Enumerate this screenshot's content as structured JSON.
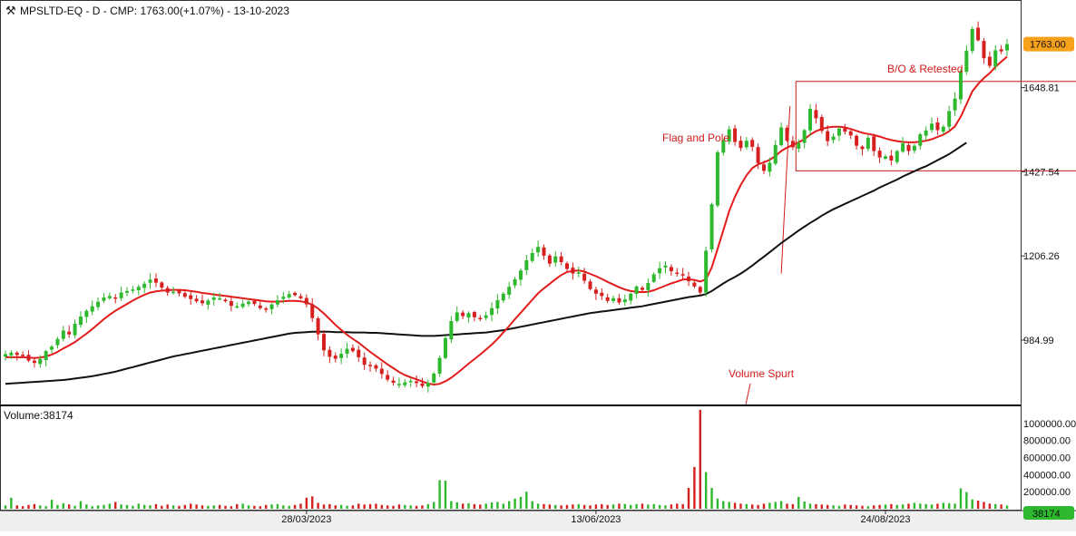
{
  "header": {
    "title": "MPSLTD-EQ - D - CMP: 1763.00(+1.07%) - 13-10-2023"
  },
  "chart_data": [
    {
      "type": "candlestick",
      "ylim": [
        830,
        1860
      ],
      "y_ticks": [
        "1648.81",
        "1427.54",
        "1206.26",
        "984.99"
      ],
      "y_tick_values": [
        1648.81,
        1427.54,
        1206.26,
        984.99
      ],
      "x_tick_labels": [
        "28/03/2023",
        "13/06/2023",
        "24/08/2023"
      ],
      "x_tick_index": [
        52,
        102,
        152
      ],
      "last_price_label": "1763.00",
      "last_price": 1763,
      "annotations": {
        "flag_and_pole": "Flag and Pole",
        "bo_retested": "B/O & Retested",
        "volume_spurt": "Volume Spurt"
      },
      "rectangle": {
        "from_index": 137,
        "to_index": 185,
        "y_low": 1430,
        "y_high": 1665
      },
      "ma_fast_color": "#e21b1b",
      "ma_slow_color": "#111111",
      "up_color": "#2db82d",
      "down_color": "#d62020",
      "series": [
        {
          "name": "close",
          "values": [
            948,
            952,
            946,
            944,
            931,
            925,
            935,
            956,
            968,
            988,
            1010,
            1000,
            1028,
            1047,
            1062,
            1074,
            1086,
            1097,
            1101,
            1094,
            1110,
            1114,
            1118,
            1125,
            1133,
            1144,
            1136,
            1123,
            1110,
            1112,
            1108,
            1099,
            1093,
            1087,
            1082,
            1089,
            1097,
            1095,
            1087,
            1075,
            1074,
            1081,
            1086,
            1080,
            1069,
            1067,
            1079,
            1090,
            1099,
            1106,
            1103,
            1095,
            1079,
            1043,
            1000,
            958,
            941,
            936,
            949,
            962,
            956,
            940,
            920,
            917,
            910,
            896,
            881,
            873,
            870,
            874,
            878,
            872,
            864,
            873,
            897,
            938,
            990,
            1035,
            1058,
            1048,
            1056,
            1045,
            1041,
            1050,
            1069,
            1090,
            1107,
            1125,
            1145,
            1168,
            1195,
            1214,
            1230,
            1207,
            1186,
            1205,
            1190,
            1172,
            1160,
            1163,
            1141,
            1119,
            1107,
            1101,
            1088,
            1095,
            1084,
            1092,
            1107,
            1126,
            1117,
            1135,
            1158,
            1174,
            1181,
            1166,
            1160,
            1155,
            1140,
            1126,
            1110,
            1220,
            1342,
            1479,
            1510,
            1539,
            1506,
            1490,
            1509,
            1493,
            1450,
            1430,
            1451,
            1498,
            1544,
            1509,
            1492,
            1503,
            1537,
            1593,
            1568,
            1535,
            1508,
            1520,
            1541,
            1533,
            1523,
            1496,
            1487,
            1517,
            1482,
            1465,
            1468,
            1457,
            1482,
            1502,
            1482,
            1496,
            1526,
            1536,
            1554,
            1537,
            1546,
            1587,
            1620,
            1692,
            1746,
            1803,
            1773,
            1726,
            1706,
            1747,
            1744,
            1763
          ]
        },
        {
          "name": "ma_fast",
          "values": [
            940,
            940,
            940,
            940,
            939,
            938,
            939,
            942,
            947,
            954,
            963,
            971,
            980,
            991,
            1002,
            1014,
            1027,
            1040,
            1052,
            1062,
            1071,
            1080,
            1089,
            1097,
            1104,
            1110,
            1113,
            1115,
            1116,
            1117,
            1117,
            1116,
            1114,
            1112,
            1109,
            1107,
            1105,
            1103,
            1101,
            1099,
            1097,
            1095,
            1093,
            1091,
            1089,
            1087,
            1086,
            1086,
            1087,
            1088,
            1088,
            1087,
            1084,
            1078,
            1068,
            1055,
            1040,
            1025,
            1012,
            999,
            988,
            978,
            966,
            954,
            943,
            932,
            921,
            911,
            901,
            893,
            887,
            882,
            876,
            871,
            868,
            870,
            877,
            886,
            898,
            910,
            923,
            935,
            947,
            960,
            973,
            988,
            1005,
            1022,
            1040,
            1057,
            1074,
            1091,
            1108,
            1121,
            1133,
            1145,
            1156,
            1164,
            1167,
            1168,
            1165,
            1159,
            1153,
            1146,
            1138,
            1131,
            1124,
            1118,
            1114,
            1112,
            1111,
            1112,
            1116,
            1122,
            1128,
            1134,
            1139,
            1144,
            1145,
            1143,
            1139,
            1145,
            1176,
            1224,
            1274,
            1324,
            1362,
            1393,
            1418,
            1437,
            1447,
            1452,
            1459,
            1469,
            1482,
            1491,
            1498,
            1505,
            1513,
            1525,
            1534,
            1540,
            1544,
            1546,
            1546,
            1544,
            1540,
            1535,
            1530,
            1527,
            1524,
            1520,
            1515,
            1511,
            1508,
            1506,
            1505,
            1505,
            1507,
            1509,
            1513,
            1519,
            1525,
            1534,
            1547,
            1572,
            1605,
            1639,
            1658,
            1674,
            1687,
            1703,
            1717,
            1730
          ]
        },
        {
          "name": "ma_slow",
          "values": [
            870,
            871,
            872,
            873,
            874,
            875,
            876,
            877,
            878,
            879,
            880,
            882,
            884,
            886,
            888,
            890,
            893,
            896,
            899,
            902,
            906,
            910,
            914,
            918,
            922,
            926,
            930,
            934,
            938,
            942,
            945,
            948,
            951,
            954,
            957,
            960,
            963,
            966,
            969,
            972,
            975,
            978,
            981,
            984,
            987,
            990,
            993,
            996,
            999,
            1002,
            1004,
            1005,
            1006,
            1007,
            1007,
            1007,
            1007,
            1006,
            1006,
            1006,
            1005,
            1005,
            1005,
            1004,
            1004,
            1003,
            1002,
            1001,
            1000,
            999,
            998,
            997,
            996,
            996,
            996,
            997,
            998,
            999,
            1000,
            1001,
            1002,
            1003,
            1004,
            1005,
            1007,
            1009,
            1011,
            1014,
            1017,
            1020,
            1023,
            1026,
            1029,
            1032,
            1035,
            1038,
            1041,
            1044,
            1047,
            1050,
            1053,
            1056,
            1058,
            1060,
            1062,
            1064,
            1066,
            1068,
            1070,
            1072,
            1074,
            1077,
            1080,
            1083,
            1086,
            1089,
            1092,
            1095,
            1098,
            1100,
            1102,
            1106,
            1114,
            1124,
            1134,
            1143,
            1151,
            1160,
            1170,
            1181,
            1193,
            1204,
            1216,
            1228,
            1240,
            1251,
            1262,
            1273,
            1283,
            1293,
            1302,
            1312,
            1321,
            1329,
            1336,
            1343,
            1350,
            1357,
            1364,
            1371,
            1378,
            1386,
            1393,
            1400,
            1407,
            1415,
            1422,
            1429,
            1436,
            1442,
            1450,
            1458,
            1466,
            1474,
            1484,
            1494,
            1504
          ]
        }
      ]
    },
    {
      "type": "bar",
      "label": "Volume:38174",
      "y_ticks": [
        "1000000.00",
        "800000.00",
        "600000.00",
        "400000.00",
        "200000.00"
      ],
      "y_tick_values": [
        1000000,
        800000,
        600000,
        400000,
        200000
      ],
      "ylim": [
        0,
        1180000
      ],
      "last_volume_label": "38174",
      "values": [
        40000,
        130000,
        40000,
        30000,
        45000,
        55000,
        40000,
        30000,
        105000,
        45000,
        65000,
        50000,
        35000,
        90000,
        50000,
        30000,
        40000,
        45000,
        60000,
        80000,
        50000,
        45000,
        35000,
        60000,
        45000,
        40000,
        55000,
        35000,
        50000,
        40000,
        35000,
        45000,
        60000,
        50000,
        40000,
        35000,
        40000,
        45000,
        35000,
        30000,
        55000,
        60000,
        40000,
        35000,
        30000,
        45000,
        50000,
        55000,
        40000,
        35000,
        45000,
        60000,
        130000,
        145000,
        70000,
        50000,
        55000,
        40000,
        45000,
        35000,
        40000,
        60000,
        50000,
        55000,
        60000,
        45000,
        40000,
        35000,
        50000,
        45000,
        40000,
        35000,
        40000,
        55000,
        80000,
        335000,
        330000,
        90000,
        75000,
        60000,
        65000,
        55000,
        50000,
        60000,
        75000,
        80000,
        60000,
        90000,
        120000,
        140000,
        200000,
        90000,
        60000,
        55000,
        50000,
        45000,
        40000,
        45000,
        50000,
        55000,
        45000,
        40000,
        50000,
        55000,
        45000,
        50000,
        60000,
        55000,
        45000,
        55000,
        60000,
        50000,
        55000,
        45000,
        40000,
        50000,
        60000,
        55000,
        245000,
        490000,
        1160000,
        430000,
        245000,
        120000,
        90000,
        80000,
        70000,
        60000,
        55000,
        50000,
        45000,
        60000,
        70000,
        80000,
        90000,
        60000,
        55000,
        140000,
        85000,
        60000,
        55000,
        50000,
        45000,
        40000,
        35000,
        50000,
        45000,
        40000,
        35000,
        30000,
        40000,
        45000,
        50000,
        55000,
        45000,
        50000,
        60000,
        70000,
        60000,
        55000,
        50000,
        60000,
        70000,
        65000,
        60000,
        240000,
        195000,
        110000,
        95000,
        80000,
        60000,
        55000,
        50000,
        38174
      ]
    }
  ]
}
